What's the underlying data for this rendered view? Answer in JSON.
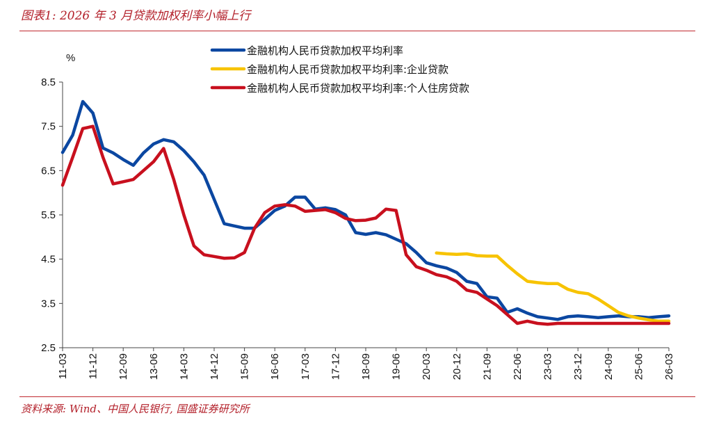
{
  "header": {
    "title": "图表1: 2026 年 3 月贷款加权利率小幅上行"
  },
  "footer": {
    "source": "资料来源: Wind、中国人民银行, 国盛证券研究所"
  },
  "colors": {
    "brand_red": "#c0282f",
    "series_blue": "#0b47a1",
    "series_yellow": "#f7c300",
    "series_red": "#c8101e"
  },
  "chart_data": {
    "type": "line",
    "title": "",
    "xlabel": "",
    "ylabel": "%",
    "ylim": [
      2.5,
      8.5
    ],
    "yticks": [
      "8.5",
      "7.5",
      "6.5",
      "5.5",
      "4.5",
      "3.5",
      "2.5"
    ],
    "xticks": [
      "11-03",
      "11-12",
      "12-09",
      "13-06",
      "14-03",
      "14-12",
      "15-09",
      "16-06",
      "17-03",
      "17-12",
      "18-09",
      "19-06",
      "20-03",
      "20-12",
      "21-09",
      "22-06",
      "23-03",
      "23-12",
      "24-09",
      "25-06",
      "26-03"
    ],
    "legend_position": "top-right",
    "series": [
      {
        "name": "金融机构人民币贷款加权平均利率",
        "color": "#0b47a1",
        "x": [
          "11-03",
          "11-06",
          "11-09",
          "11-12",
          "12-03",
          "12-06",
          "12-09",
          "12-12",
          "13-03",
          "13-06",
          "13-09",
          "13-12",
          "14-03",
          "14-06",
          "14-09",
          "14-12",
          "15-03",
          "15-06",
          "15-09",
          "15-12",
          "16-03",
          "16-06",
          "16-09",
          "16-12",
          "17-03",
          "17-06",
          "17-09",
          "17-12",
          "18-03",
          "18-06",
          "18-09",
          "18-12",
          "19-03",
          "19-06",
          "19-09",
          "19-12",
          "20-03",
          "20-06",
          "20-09",
          "20-12",
          "21-03",
          "21-06",
          "21-09",
          "21-12",
          "22-03",
          "22-06",
          "22-09",
          "22-12",
          "23-03",
          "23-06",
          "23-09",
          "23-12",
          "24-03",
          "24-06",
          "24-09",
          "24-12",
          "25-03",
          "25-06",
          "25-09",
          "25-12",
          "26-03"
        ],
        "values": [
          6.91,
          7.3,
          8.06,
          7.8,
          7.01,
          6.9,
          6.75,
          6.62,
          6.9,
          7.1,
          7.2,
          7.15,
          6.95,
          6.7,
          6.4,
          5.85,
          5.3,
          5.25,
          5.2,
          5.2,
          5.4,
          5.6,
          5.7,
          5.9,
          5.9,
          5.63,
          5.66,
          5.62,
          5.5,
          5.1,
          5.06,
          5.1,
          5.05,
          4.95,
          4.85,
          4.65,
          4.42,
          4.35,
          4.3,
          4.2,
          4.0,
          3.95,
          3.65,
          3.62,
          3.3,
          3.38,
          3.28,
          3.2,
          3.17,
          3.14,
          3.2,
          3.22,
          3.2,
          3.18,
          3.2,
          3.22,
          3.2,
          3.2,
          3.18,
          3.2,
          3.22
        ]
      },
      {
        "name": "金融机构人民币贷款加权平均利率:企业贷款",
        "color": "#f7c300",
        "x": [
          "20-06",
          "20-09",
          "20-12",
          "21-03",
          "21-06",
          "21-09",
          "21-12",
          "22-03",
          "22-06",
          "22-09",
          "22-12",
          "23-03",
          "23-06",
          "23-09",
          "23-12",
          "24-03",
          "24-06",
          "24-09",
          "24-12",
          "25-03",
          "25-06",
          "25-09",
          "25-12",
          "26-03"
        ],
        "values": [
          4.64,
          4.62,
          4.61,
          4.62,
          4.58,
          4.57,
          4.57,
          4.36,
          4.17,
          4.0,
          3.97,
          3.95,
          3.95,
          3.82,
          3.75,
          3.72,
          3.6,
          3.45,
          3.3,
          3.22,
          3.17,
          3.13,
          3.1,
          3.1
        ]
      },
      {
        "name": "金融机构人民币贷款加权平均利率:个人住房贷款",
        "color": "#c8101e",
        "x": [
          "11-03",
          "11-06",
          "11-09",
          "11-12",
          "12-03",
          "12-06",
          "12-09",
          "12-12",
          "13-03",
          "13-06",
          "13-09",
          "13-12",
          "14-03",
          "14-06",
          "14-09",
          "14-12",
          "15-03",
          "15-06",
          "15-09",
          "15-12",
          "16-03",
          "16-06",
          "16-09",
          "16-12",
          "17-03",
          "17-06",
          "17-09",
          "17-12",
          "18-03",
          "18-06",
          "18-09",
          "18-12",
          "19-03",
          "19-06",
          "19-09",
          "19-12",
          "20-03",
          "20-06",
          "20-09",
          "20-12",
          "21-03",
          "21-06",
          "21-09",
          "21-12",
          "22-03",
          "22-06",
          "22-09",
          "22-12",
          "23-03",
          "23-06",
          "23-09",
          "23-12",
          "24-03",
          "24-06",
          "24-09",
          "24-12",
          "25-03",
          "25-06",
          "25-09",
          "25-12",
          "26-03"
        ],
        "values": [
          6.17,
          6.8,
          7.45,
          7.5,
          6.8,
          6.2,
          6.25,
          6.3,
          6.5,
          6.7,
          7.0,
          6.3,
          5.5,
          4.8,
          4.6,
          4.56,
          4.52,
          4.53,
          4.65,
          5.2,
          5.55,
          5.7,
          5.73,
          5.7,
          5.58,
          5.6,
          5.62,
          5.55,
          5.42,
          5.37,
          5.38,
          5.43,
          5.63,
          5.6,
          4.6,
          4.33,
          4.25,
          4.15,
          4.1,
          4.0,
          3.8,
          3.75,
          3.6,
          3.45,
          3.25,
          3.05,
          3.1,
          3.05,
          3.03,
          3.05,
          3.05,
          3.05,
          3.05,
          3.05,
          3.05,
          3.05,
          3.05,
          3.05,
          3.05,
          3.05,
          3.05
        ]
      }
    ]
  }
}
